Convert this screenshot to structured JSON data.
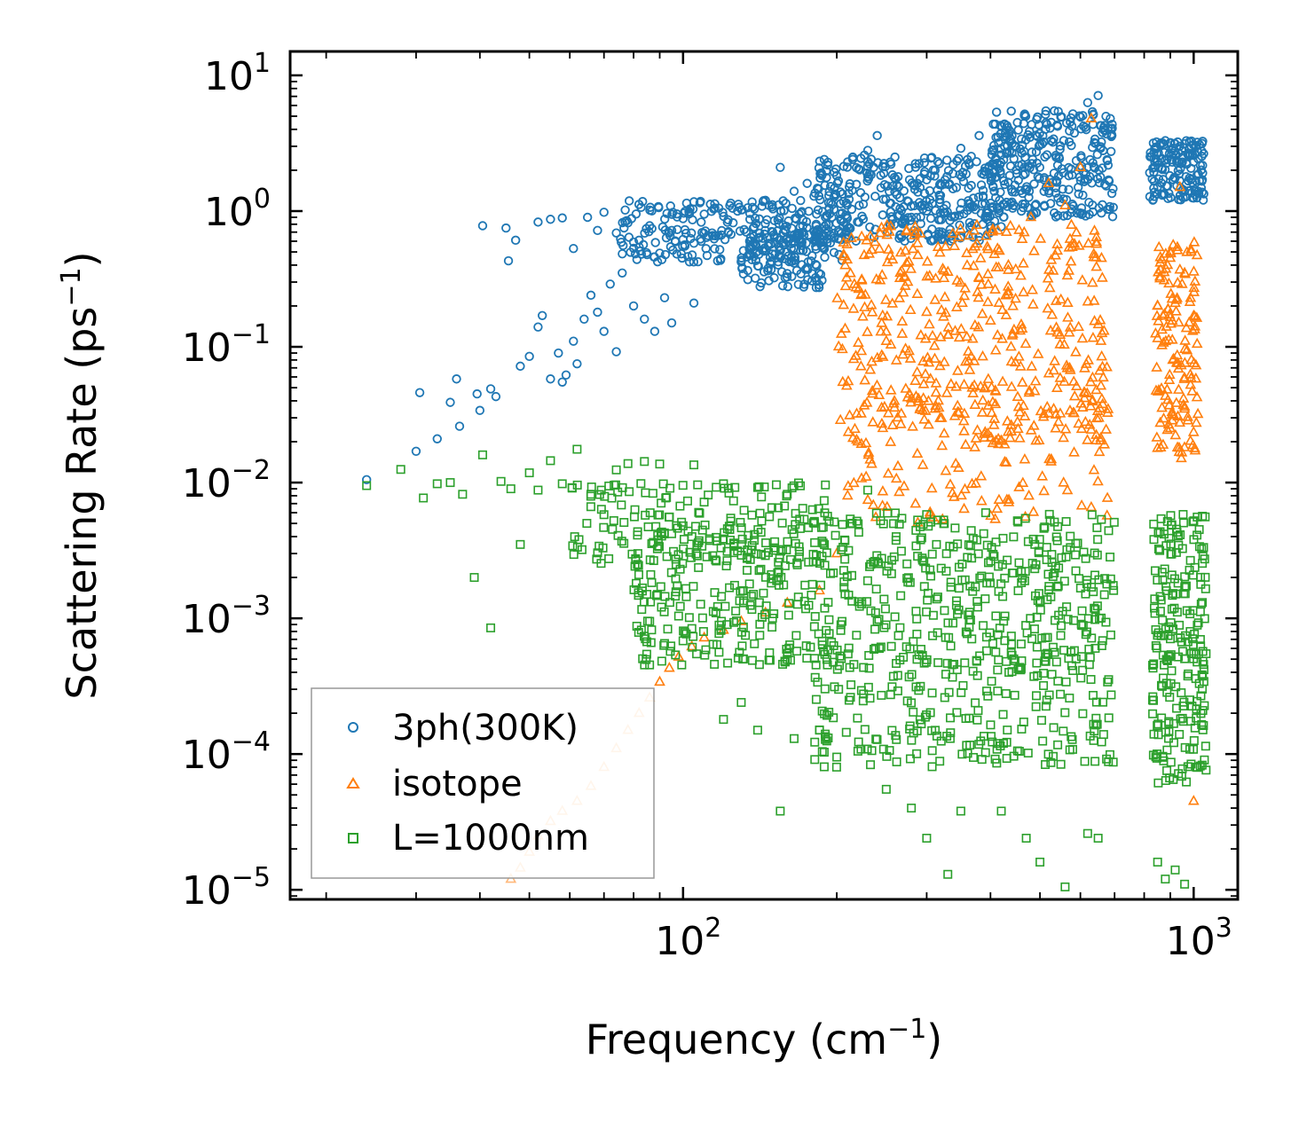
{
  "chart_data": {
    "type": "scatter",
    "xscale": "log",
    "yscale": "log",
    "xlim": [
      17,
      1220
    ],
    "ylim": [
      8.5e-06,
      15
    ],
    "xlabel": "Frequency (cm",
    "xlabel_sup": "−1",
    "xlabel_tail": ")",
    "ylabel": "Scattering Rate (ps",
    "ylabel_sup": "−1",
    "ylabel_tail": ")",
    "x_ticks": [
      {
        "value": 100,
        "base": "10",
        "exp": "2"
      },
      {
        "value": 1000,
        "base": "10",
        "exp": "3"
      }
    ],
    "y_ticks": [
      {
        "value": 10,
        "base": "10",
        "exp": "1"
      },
      {
        "value": 1,
        "base": "10",
        "exp": "0"
      },
      {
        "value": 0.1,
        "base": "10",
        "exp": "−1"
      },
      {
        "value": 0.01,
        "base": "10",
        "exp": "−2"
      },
      {
        "value": 0.001,
        "base": "10",
        "exp": "−3"
      },
      {
        "value": 0.0001,
        "base": "10",
        "exp": "−4"
      },
      {
        "value": 1e-05,
        "base": "10",
        "exp": "−5"
      }
    ],
    "legend_position": "lower-left",
    "series": [
      {
        "name": "3ph(300K)",
        "marker": "circle",
        "color": "#1f77b4",
        "points": [
          [
            24,
            0.0105
          ],
          [
            30,
            0.017
          ],
          [
            30.5,
            0.046
          ],
          [
            33,
            0.021
          ],
          [
            35,
            0.039
          ],
          [
            36,
            0.058
          ],
          [
            36.5,
            0.026
          ],
          [
            39.5,
            0.045
          ],
          [
            40,
            0.034
          ],
          [
            40.5,
            0.78
          ],
          [
            42,
            0.049
          ],
          [
            43,
            0.043
          ],
          [
            45,
            0.75
          ],
          [
            45.5,
            0.43
          ],
          [
            47,
            0.61
          ],
          [
            48,
            0.072
          ],
          [
            50,
            0.085
          ],
          [
            52,
            0.14
          ],
          [
            53,
            0.17
          ],
          [
            55,
            0.058
          ],
          [
            57,
            0.09
          ],
          [
            58,
            0.055
          ],
          [
            59,
            0.062
          ],
          [
            61,
            0.11
          ],
          [
            62,
            0.075
          ],
          [
            64,
            0.16
          ],
          [
            66,
            0.24
          ],
          [
            68,
            0.18
          ],
          [
            70,
            0.13
          ],
          [
            72,
            0.29
          ],
          [
            74,
            0.092
          ],
          [
            76,
            0.35
          ],
          [
            80,
            0.2
          ],
          [
            84,
            0.16
          ],
          [
            88,
            0.13
          ],
          [
            92,
            0.23
          ],
          [
            95,
            0.15
          ],
          [
            105,
            0.21
          ],
          [
            52,
            0.83
          ],
          [
            55,
            0.87
          ],
          [
            58,
            0.89
          ],
          [
            61,
            0.53
          ],
          [
            65,
            0.9
          ],
          [
            68,
            0.72
          ],
          [
            70,
            0.98
          ],
          [
            74,
            0.69
          ],
          [
            78,
            0.82
          ],
          [
            82,
            0.61
          ],
          [
            86,
            0.78
          ],
          [
            90,
            0.49
          ],
          [
            95,
            0.72
          ],
          [
            100,
            0.88
          ],
          [
            105,
            0.58
          ],
          [
            110,
            0.95
          ],
          [
            118,
            0.52
          ],
          [
            125,
            1.05
          ],
          [
            135,
            0.6
          ],
          [
            145,
            1.2
          ],
          [
            155,
            2.1
          ],
          [
            165,
            1.4
          ],
          [
            175,
            1.6
          ],
          [
            190,
            0.9
          ],
          [
            210,
            2.3
          ],
          [
            230,
            2.8
          ],
          [
            240,
            3.6
          ],
          [
            260,
            2.5
          ],
          [
            280,
            0.9
          ],
          [
            300,
            1.7
          ],
          [
            320,
            0.62
          ],
          [
            350,
            2.9
          ],
          [
            380,
            3.6
          ],
          [
            420,
            2.6
          ],
          [
            460,
            3.4
          ],
          [
            500,
            3.1
          ],
          [
            540,
            4.3
          ],
          [
            580,
            5.2
          ],
          [
            620,
            6.3
          ],
          [
            650,
            7.1
          ],
          [
            680,
            4.1
          ],
          [
            840,
            2.1
          ],
          [
            880,
            3.3
          ],
          [
            920,
            2.6
          ],
          [
            960,
            1.4
          ],
          [
            1000,
            2.3
          ],
          [
            1040,
            1.7
          ]
        ],
        "bands": [
          {
            "x0": 75,
            "x1": 210,
            "ymin": 0.42,
            "ymax": 1.2,
            "n": 260
          },
          {
            "x0": 130,
            "x1": 190,
            "ymin": 0.27,
            "ymax": 0.8,
            "n": 120
          },
          {
            "x0": 180,
            "x1": 420,
            "ymin": 0.6,
            "ymax": 2.6,
            "n": 360
          },
          {
            "x0": 400,
            "x1": 700,
            "ymin": 0.9,
            "ymax": 5.5,
            "n": 300
          },
          {
            "x0": 820,
            "x1": 1050,
            "ymin": 1.2,
            "ymax": 3.3,
            "n": 150
          }
        ]
      },
      {
        "name": "isotope",
        "marker": "triangle",
        "color": "#ff7f0e",
        "points": [
          [
            46,
            1.2e-05
          ],
          [
            48,
            1.45e-05
          ],
          [
            50,
            1.9e-05
          ],
          [
            52,
            2.5e-05
          ],
          [
            55,
            3.2e-05
          ],
          [
            58,
            3.8e-05
          ],
          [
            62,
            4.5e-05
          ],
          [
            66,
            5.8e-05
          ],
          [
            70,
            8e-05
          ],
          [
            74,
            0.00011
          ],
          [
            78,
            0.00015
          ],
          [
            82,
            0.0002
          ],
          [
            86,
            0.00026
          ],
          [
            90,
            0.00034
          ],
          [
            94,
            0.00043
          ],
          [
            98,
            0.00052
          ],
          [
            104,
            0.00062
          ],
          [
            110,
            0.00072
          ],
          [
            120,
            0.00082
          ],
          [
            130,
            0.00095
          ],
          [
            145,
            0.0011
          ],
          [
            160,
            0.0013
          ],
          [
            185,
            0.0016
          ],
          [
            200,
            0.003
          ],
          [
            210,
            0.008
          ],
          [
            220,
            0.02
          ],
          [
            235,
            0.045
          ],
          [
            250,
            0.11
          ],
          [
            270,
            0.25
          ],
          [
            300,
            0.18
          ],
          [
            340,
            0.55
          ],
          [
            380,
            0.32
          ],
          [
            430,
            0.7
          ],
          [
            480,
            0.9
          ],
          [
            520,
            1.6
          ],
          [
            560,
            1.1
          ],
          [
            600,
            2.1
          ],
          [
            630,
            4.8
          ],
          [
            660,
            0.45
          ],
          [
            850,
            0.2
          ],
          [
            900,
            0.5
          ],
          [
            940,
            1.5
          ],
          [
            960,
            0.35
          ],
          [
            990,
            0.08
          ],
          [
            1000,
            4.5e-05
          ]
        ],
        "bands": [
          {
            "x0": 200,
            "x1": 680,
            "ymin": 0.02,
            "ymax": 0.8,
            "n": 420
          },
          {
            "x0": 210,
            "x1": 680,
            "ymin": 0.005,
            "ymax": 0.05,
            "n": 140
          },
          {
            "x0": 840,
            "x1": 1020,
            "ymin": 0.015,
            "ymax": 0.6,
            "n": 140
          }
        ]
      },
      {
        "name": "L=1000nm",
        "marker": "square",
        "color": "#2ca02c",
        "points": [
          [
            24,
            0.0095
          ],
          [
            28,
            0.0125
          ],
          [
            31,
            0.0077
          ],
          [
            33,
            0.0098
          ],
          [
            35,
            0.01
          ],
          [
            37,
            0.0082
          ],
          [
            39,
            0.002
          ],
          [
            40.5,
            0.016
          ],
          [
            42,
            0.00085
          ],
          [
            44,
            0.0102
          ],
          [
            46,
            0.009
          ],
          [
            48,
            0.0035
          ],
          [
            50,
            0.0118
          ],
          [
            52,
            0.0088
          ],
          [
            55,
            0.0145
          ],
          [
            58,
            0.0098
          ],
          [
            62,
            0.0176
          ],
          [
            66,
            0.0082
          ],
          [
            70,
            0.0058
          ],
          [
            74,
            0.0124
          ],
          [
            78,
            0.0138
          ],
          [
            84,
            0.0143
          ],
          [
            90,
            0.0137
          ],
          [
            95,
            0.0042
          ],
          [
            100,
            0.0048
          ],
          [
            105,
            0.0135
          ],
          [
            112,
            0.0081
          ],
          [
            120,
            0.0098
          ],
          [
            140,
            0.0092
          ],
          [
            160,
            0.0082
          ],
          [
            190,
            0.0096
          ],
          [
            230,
            0.0088
          ],
          [
            120,
            0.00018
          ],
          [
            130,
            0.00024
          ],
          [
            140,
            0.00015
          ],
          [
            155,
            3.8e-05
          ],
          [
            165,
            0.00013
          ],
          [
            185,
            0.00015
          ],
          [
            200,
            9.5e-05
          ],
          [
            220,
            0.000105
          ],
          [
            250,
            5.5e-05
          ],
          [
            280,
            4e-05
          ],
          [
            300,
            2.4e-05
          ],
          [
            330,
            1.3e-05
          ],
          [
            350,
            3.8e-05
          ],
          [
            420,
            3.8e-05
          ],
          [
            470,
            2.4e-05
          ],
          [
            500,
            1.6e-05
          ],
          [
            560,
            1.05e-05
          ],
          [
            620,
            2.6e-05
          ],
          [
            650,
            2.4e-05
          ],
          [
            850,
            1.6e-05
          ],
          [
            880,
            1.2e-05
          ],
          [
            920,
            1.4e-05
          ],
          [
            960,
            1.1e-05
          ]
        ],
        "bands": [
          {
            "x0": 80,
            "x1": 700,
            "ymin": 0.00045,
            "ymax": 0.006,
            "n": 650
          },
          {
            "x0": 180,
            "x1": 700,
            "ymin": 8e-05,
            "ymax": 0.0005,
            "n": 220
          },
          {
            "x0": 830,
            "x1": 1060,
            "ymin": 6e-05,
            "ymax": 0.006,
            "n": 220
          },
          {
            "x0": 60,
            "x1": 200,
            "ymin": 0.0025,
            "ymax": 0.01,
            "n": 130
          }
        ]
      }
    ]
  }
}
